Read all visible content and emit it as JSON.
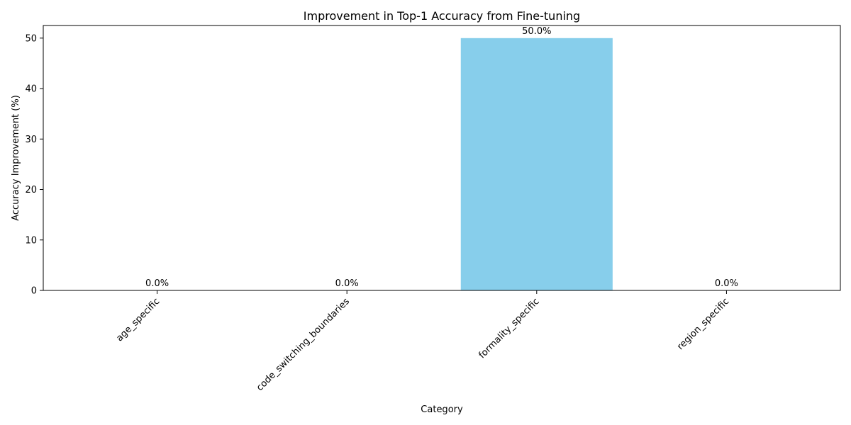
{
  "chart_data": {
    "type": "bar",
    "title": "Improvement in Top-1 Accuracy from Fine-tuning",
    "xlabel": "Category",
    "ylabel": "Accuracy Improvement (%)",
    "categories": [
      "age_specific",
      "code_switching_boundaries",
      "formality_specific",
      "region_specific"
    ],
    "values": [
      0.0,
      0.0,
      50.0,
      0.0
    ],
    "data_labels": [
      "0.0%",
      "0.0%",
      "50.0%",
      "0.0%"
    ],
    "ylim": [
      0,
      52.5
    ],
    "yticks": [
      0,
      10,
      20,
      30,
      40,
      50
    ],
    "bar_color": "#87ceeb",
    "grid": false,
    "legend": "none"
  }
}
